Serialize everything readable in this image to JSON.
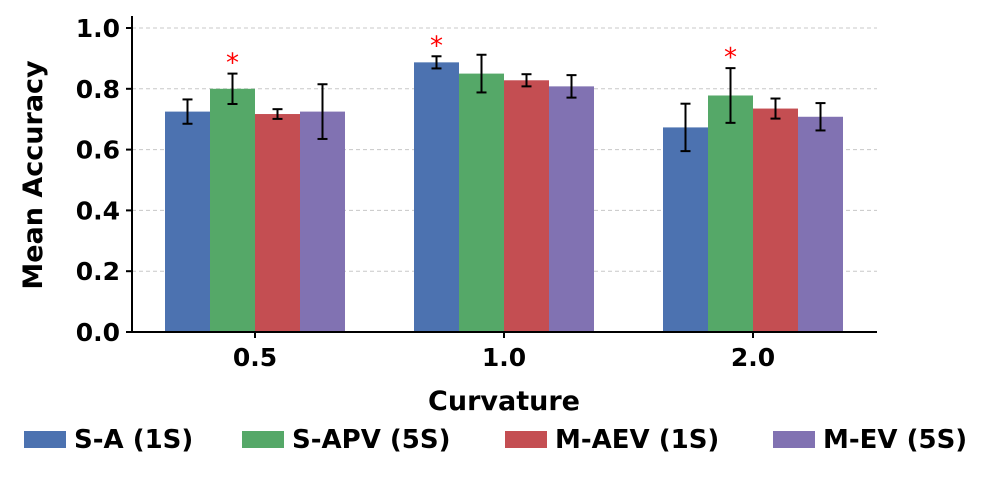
{
  "chart_data": {
    "type": "bar",
    "title": "",
    "xlabel": "Curvature",
    "ylabel": "Mean Accuracy",
    "categories": [
      "0.5",
      "1.0",
      "2.0"
    ],
    "ylim": [
      0,
      1.0
    ],
    "yticks": [
      "0.0",
      "0.2",
      "0.4",
      "0.6",
      "0.8",
      "1.0"
    ],
    "grid": true,
    "legend_position": "bottom",
    "series": [
      {
        "name": "S-A (1S)",
        "color": "#4c72b0",
        "values": [
          0.725,
          0.887,
          0.673
        ],
        "errors": [
          0.04,
          0.02,
          0.078
        ]
      },
      {
        "name": "S-APV (5S)",
        "color": "#55a868",
        "values": [
          0.8,
          0.85,
          0.778
        ],
        "errors": [
          0.05,
          0.062,
          0.09
        ]
      },
      {
        "name": "M-AEV (1S)",
        "color": "#c44e52",
        "values": [
          0.717,
          0.828,
          0.735
        ],
        "errors": [
          0.016,
          0.02,
          0.033
        ]
      },
      {
        "name": "M-EV (5S)",
        "color": "#8172b2",
        "values": [
          0.725,
          0.808,
          0.708
        ],
        "errors": [
          0.09,
          0.037,
          0.045
        ]
      }
    ],
    "annotations": [
      {
        "text": "*",
        "category": "0.5",
        "series": "S-APV (5S)",
        "color": "#ff0000"
      },
      {
        "text": "*",
        "category": "1.0",
        "series": "S-A (1S)",
        "color": "#ff0000"
      },
      {
        "text": "*",
        "category": "2.0",
        "series": "S-APV (5S)",
        "color": "#ff0000"
      }
    ]
  }
}
